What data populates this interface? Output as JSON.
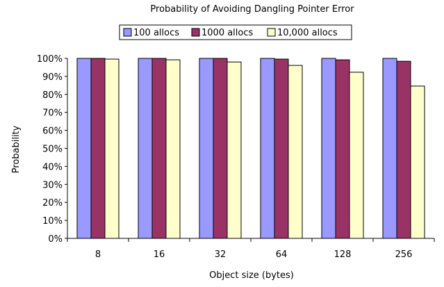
{
  "chart_data": {
    "type": "bar",
    "title": "Probability of Avoiding Dangling Pointer Error",
    "xlabel": "Object size (bytes)",
    "ylabel": "Probability",
    "categories": [
      "8",
      "16",
      "32",
      "64",
      "128",
      "256"
    ],
    "series": [
      {
        "name": "100 allocs",
        "color": "#9999ff",
        "values": [
          100,
          100,
          100,
          100,
          100,
          100
        ]
      },
      {
        "name": "1000 allocs",
        "color": "#993366",
        "values": [
          100,
          100,
          100,
          99.6,
          99.2,
          98.4
        ]
      },
      {
        "name": "10,000 allocs",
        "color": "#ffffcc",
        "values": [
          99.6,
          99.2,
          98.0,
          96.1,
          92.3,
          84.6
        ]
      }
    ],
    "ylim": [
      0,
      100
    ],
    "yticks": [
      "0%",
      "10%",
      "20%",
      "30%",
      "40%",
      "50%",
      "60%",
      "70%",
      "80%",
      "90%",
      "100%"
    ],
    "grid": false,
    "legend": "top"
  }
}
